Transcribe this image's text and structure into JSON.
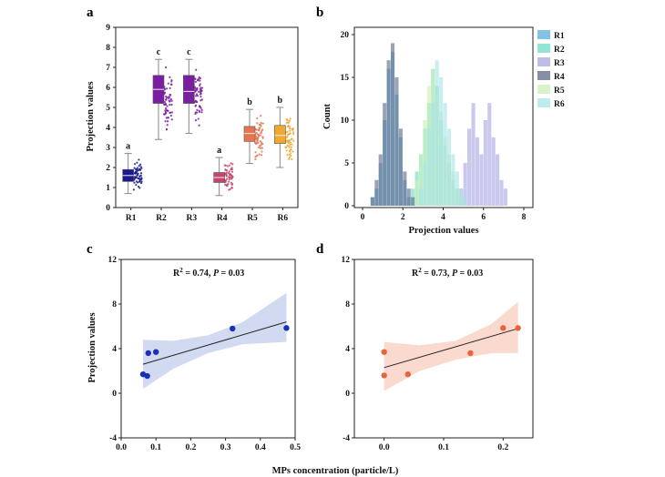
{
  "panels": {
    "a": "a",
    "b": "b",
    "c": "c",
    "d": "d"
  },
  "chart_data": [
    {
      "panel": "a",
      "type": "box",
      "ylabel": "Projection values",
      "ylim": [
        0,
        9
      ],
      "yticks": [
        0,
        1,
        2,
        3,
        4,
        5,
        6,
        7,
        8,
        9
      ],
      "categories": [
        "R1",
        "R2",
        "R3",
        "R4",
        "R5",
        "R6"
      ],
      "colors": [
        "#1a1a8c",
        "#7b1fa2",
        "#7b1fa2",
        "#c2466e",
        "#e8744f",
        "#f0a830"
      ],
      "boxes": [
        {
          "name": "R1",
          "min": 0.7,
          "q1": 1.3,
          "median": 1.6,
          "q3": 1.9,
          "max": 2.7,
          "letter": "a"
        },
        {
          "name": "R2",
          "min": 3.4,
          "q1": 5.2,
          "median": 5.9,
          "q3": 6.6,
          "max": 7.4,
          "letter": "c"
        },
        {
          "name": "R3",
          "min": 3.7,
          "q1": 5.2,
          "median": 5.8,
          "q3": 6.6,
          "max": 7.4,
          "letter": "c"
        },
        {
          "name": "R4",
          "min": 0.6,
          "q1": 1.25,
          "median": 1.5,
          "q3": 1.75,
          "max": 2.5,
          "letter": "a"
        },
        {
          "name": "R5",
          "min": 2.2,
          "q1": 3.3,
          "median": 3.7,
          "q3": 4.05,
          "max": 4.9,
          "letter": "b"
        },
        {
          "name": "R6",
          "min": 2.0,
          "q1": 3.2,
          "median": 3.6,
          "q3": 4.1,
          "max": 5.0,
          "letter": "b"
        }
      ]
    },
    {
      "panel": "b",
      "type": "histogram",
      "xlabel": "Projection values",
      "ylabel": "Count",
      "xlim": [
        0,
        8
      ],
      "ylim": [
        0,
        20
      ],
      "xticks": [
        0,
        2,
        4,
        6,
        8
      ],
      "yticks": [
        0,
        5,
        10,
        15,
        20
      ],
      "bin_width": 0.2,
      "legend_position": "right",
      "series": [
        {
          "name": "R1",
          "color": "#5aaedb",
          "bins_start": 0.4,
          "counts": [
            1,
            2,
            5,
            10,
            16,
            18,
            13,
            8,
            3,
            1
          ]
        },
        {
          "name": "R2",
          "color": "#6fdcc4",
          "bins_start": 2.4,
          "counts": [
            2,
            4,
            6,
            9,
            12,
            16,
            14,
            10,
            7,
            5,
            3,
            2,
            1
          ]
        },
        {
          "name": "R3",
          "color": "#a9a7e0",
          "bins_start": 4.8,
          "counts": [
            2,
            5,
            9,
            12,
            8,
            6,
            10,
            12,
            8,
            6,
            3,
            2
          ]
        },
        {
          "name": "R4",
          "color": "#606a86",
          "bins_start": 0.4,
          "counts": [
            1,
            3,
            6,
            12,
            17,
            19,
            15,
            9,
            4,
            2,
            1
          ]
        },
        {
          "name": "R5",
          "color": "#cdeeb6",
          "bins_start": 2.6,
          "counts": [
            3,
            6,
            10,
            14,
            16,
            13,
            11,
            8,
            6,
            4,
            2,
            1
          ]
        },
        {
          "name": "R6",
          "color": "#a8e4e6",
          "bins_start": 2.8,
          "counts": [
            2,
            5,
            9,
            12,
            17,
            15,
            12,
            9,
            6,
            4,
            2,
            1
          ]
        }
      ]
    },
    {
      "panel": "c",
      "type": "scatter",
      "annotation_r2": "R",
      "annotation_sup": "2",
      "annotation_rest": " = 0.74, ",
      "annotation_p": "P",
      "annotation_end": " = 0.03",
      "ylabel": "Projection values",
      "xlim": [
        0.0,
        0.5
      ],
      "ylim": [
        -4,
        12
      ],
      "xticks": [
        "0.0",
        "0.1",
        "0.2",
        "0.3",
        "0.4",
        "0.5"
      ],
      "yticks": [
        "-4",
        "0",
        "4",
        "8",
        "12"
      ],
      "point_color": "#1a2fb8",
      "band_color": "#c9d4ee",
      "points": [
        {
          "x": 0.063,
          "y": 1.7
        },
        {
          "x": 0.075,
          "y": 1.55
        },
        {
          "x": 0.078,
          "y": 3.6
        },
        {
          "x": 0.1,
          "y": 3.7
        },
        {
          "x": 0.32,
          "y": 5.8
        },
        {
          "x": 0.475,
          "y": 5.85
        }
      ],
      "fit": {
        "x": [
          0.063,
          0.475
        ],
        "y": [
          2.6,
          6.4
        ]
      },
      "band": {
        "x": [
          0.063,
          0.15,
          0.25,
          0.35,
          0.475
        ],
        "lower": [
          0.4,
          2.2,
          3.6,
          4.4,
          4.6
        ],
        "upper": [
          4.8,
          4.7,
          5.2,
          6.4,
          9.0
        ]
      }
    },
    {
      "panel": "d",
      "type": "scatter",
      "annotation_r2": "R",
      "annotation_sup": "2",
      "annotation_rest": " = 0.73, ",
      "annotation_p": "P",
      "annotation_end": " = 0.03",
      "xlim": [
        -0.05,
        0.25
      ],
      "ylim": [
        -4,
        12
      ],
      "xticks": [
        "0.0",
        "0.1",
        "0.2"
      ],
      "xtick_values": [
        0.0,
        0.1,
        0.2
      ],
      "yticks": [
        "-4",
        "0",
        "4",
        "8",
        "12"
      ],
      "point_color": "#e8643c",
      "band_color": "#f9d3c6",
      "points": [
        {
          "x": 0.0,
          "y": 3.7
        },
        {
          "x": 0.0,
          "y": 1.6
        },
        {
          "x": 0.04,
          "y": 1.7
        },
        {
          "x": 0.145,
          "y": 3.6
        },
        {
          "x": 0.2,
          "y": 5.85
        },
        {
          "x": 0.225,
          "y": 5.85
        }
      ],
      "fit": {
        "x": [
          0.0,
          0.225
        ],
        "y": [
          2.3,
          5.8
        ]
      },
      "band": {
        "x": [
          0.0,
          0.06,
          0.12,
          0.18,
          0.225
        ],
        "lower": [
          0.2,
          2.0,
          3.0,
          3.6,
          3.6
        ],
        "upper": [
          4.6,
          4.3,
          4.7,
          6.2,
          8.2
        ]
      }
    }
  ],
  "shared_xlabel": "MPs concentration (particle/L)"
}
